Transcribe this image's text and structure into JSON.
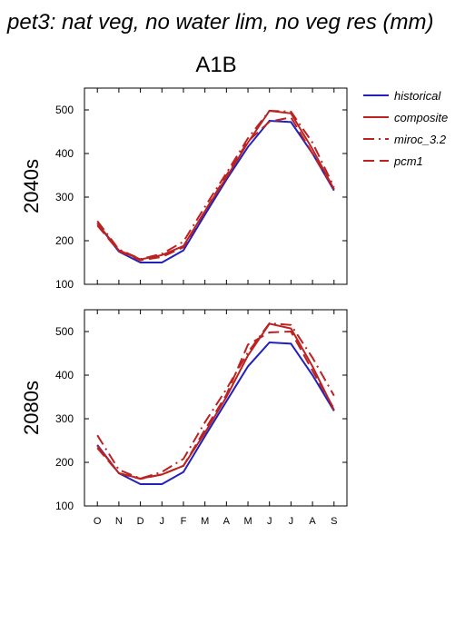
{
  "figure": {
    "main_title": "pet3: nat veg, no water lim, no veg res (mm)",
    "scenario": "A1B"
  },
  "legend": {
    "entries": [
      {
        "label": "historical",
        "color": "#2222bb",
        "dash": "solid"
      },
      {
        "label": "composite",
        "color": "#bb2222",
        "dash": "solid"
      },
      {
        "label": "miroc_3.2",
        "color": "#bb2222",
        "dash": "dashdot"
      },
      {
        "label": "pcm1",
        "color": "#bb2222",
        "dash": "dash"
      }
    ]
  },
  "chart_data": [
    {
      "type": "line",
      "panel_label": "2040s",
      "categories": [
        "O",
        "N",
        "D",
        "J",
        "F",
        "M",
        "A",
        "M",
        "J",
        "J",
        "A",
        "S"
      ],
      "ylim": [
        100,
        550
      ],
      "yticks": [
        100,
        200,
        300,
        400,
        500
      ],
      "series": [
        {
          "name": "historical",
          "values": [
            240,
            175,
            150,
            150,
            178,
            260,
            340,
            415,
            475,
            472,
            400,
            315
          ]
        },
        {
          "name": "composite",
          "values": [
            240,
            178,
            157,
            167,
            188,
            268,
            345,
            425,
            498,
            492,
            410,
            318
          ]
        },
        {
          "name": "miroc_3.2",
          "values": [
            245,
            180,
            158,
            170,
            198,
            278,
            355,
            435,
            498,
            496,
            425,
            323
          ]
        },
        {
          "name": "pcm1",
          "values": [
            235,
            176,
            155,
            163,
            185,
            268,
            350,
            428,
            473,
            483,
            400,
            318
          ]
        }
      ]
    },
    {
      "type": "line",
      "panel_label": "2080s",
      "categories": [
        "O",
        "N",
        "D",
        "J",
        "F",
        "M",
        "A",
        "M",
        "J",
        "J",
        "A",
        "S"
      ],
      "ylim": [
        100,
        550
      ],
      "yticks": [
        100,
        200,
        300,
        400,
        500
      ],
      "series": [
        {
          "name": "historical",
          "values": [
            240,
            175,
            150,
            150,
            178,
            260,
            340,
            420,
            475,
            472,
            400,
            318
          ]
        },
        {
          "name": "composite",
          "values": [
            238,
            175,
            163,
            172,
            192,
            268,
            350,
            445,
            518,
            507,
            420,
            320
          ]
        },
        {
          "name": "miroc_3.2",
          "values": [
            262,
            183,
            163,
            178,
            208,
            292,
            368,
            452,
            519,
            515,
            440,
            353
          ]
        },
        {
          "name": "pcm1",
          "values": [
            233,
            175,
            162,
            172,
            192,
            275,
            355,
            470,
            498,
            500,
            410,
            323
          ]
        }
      ]
    }
  ]
}
